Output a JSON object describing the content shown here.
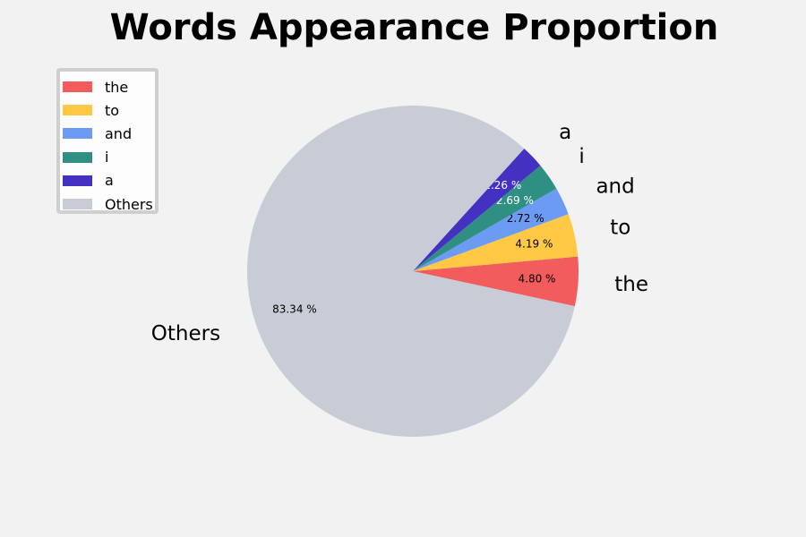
{
  "chart_data": {
    "type": "pie",
    "title": "Words Appearance Proportion",
    "categories": [
      "the",
      "to",
      "and",
      "i",
      "a",
      "Others"
    ],
    "values": [
      4.8,
      4.19,
      2.72,
      2.69,
      2.26,
      83.34
    ],
    "percent_labels": [
      "4.80 %",
      "4.19 %",
      "2.72 %",
      "2.69 %",
      "2.26 %",
      "83.34 %"
    ],
    "colors": [
      "#f25c5c",
      "#ffc845",
      "#6b9bf2",
      "#2f8f83",
      "#4331c2",
      "#c7ccd6"
    ],
    "legend": {
      "placement": "upper-left",
      "entries": [
        "the",
        "to",
        "and",
        "i",
        "a",
        "Others"
      ]
    }
  }
}
